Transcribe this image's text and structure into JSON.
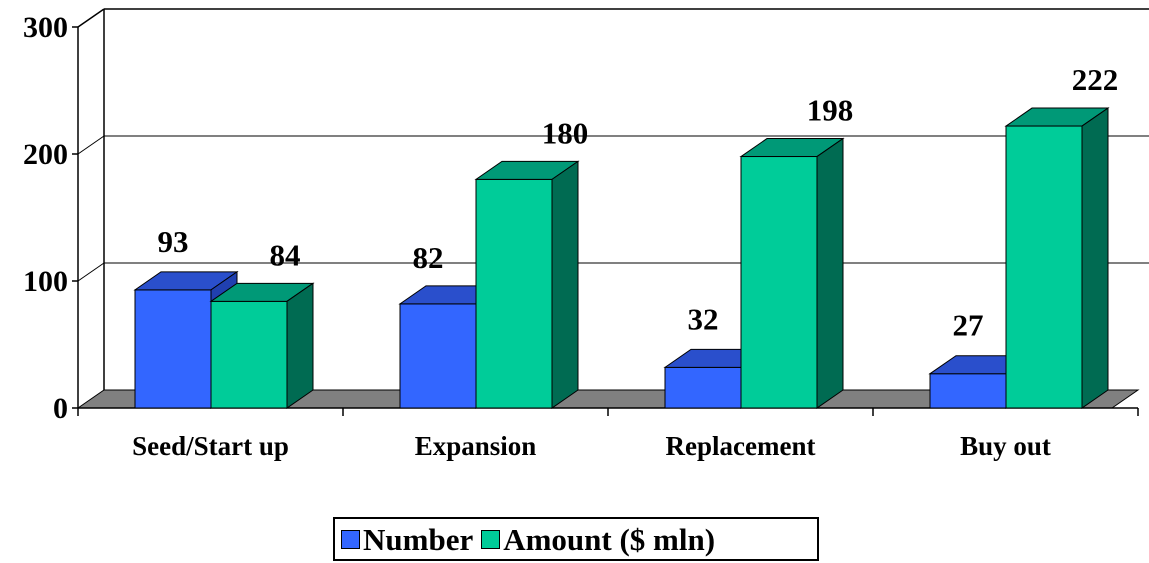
{
  "chart_data": {
    "type": "bar",
    "title": "",
    "xlabel": "",
    "ylabel": "",
    "categories": [
      "Seed/Start up",
      "Expansion",
      "Replacement",
      "Buy out"
    ],
    "series": [
      {
        "name": "Number",
        "values": [
          93,
          82,
          32,
          27
        ],
        "color": "#3366ff"
      },
      {
        "name": "Amount ($ mln)",
        "values": [
          84,
          180,
          198,
          222
        ],
        "color": "#00cc99"
      }
    ],
    "ylim": [
      0,
      300
    ],
    "yticks": [
      "0",
      "100",
      "200",
      "300"
    ],
    "grid": true,
    "legend_position": "bottom",
    "style": "3d-column"
  }
}
